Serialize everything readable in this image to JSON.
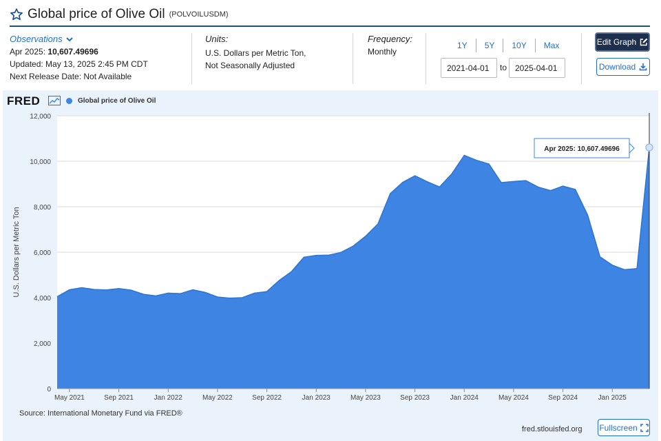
{
  "header": {
    "title": "Global price of Olive Oil",
    "series_id": "(POLVOILUSDM)"
  },
  "observations": {
    "heading": "Observations",
    "latest_label": "Apr 2025:",
    "latest_value": "10,607.49696",
    "updated": "Updated: May 13, 2025 2:45 PM CDT",
    "next_release": "Next Release Date: Not Available"
  },
  "units": {
    "heading": "Units:",
    "line1": "U.S. Dollars per Metric Ton,",
    "line2": "Not Seasonally Adjusted"
  },
  "frequency": {
    "heading": "Frequency:",
    "value": "Monthly"
  },
  "range": {
    "buttons": [
      "1Y",
      "5Y",
      "10Y",
      "Max"
    ],
    "start": "2021-04-01",
    "to_label": "to",
    "end": "2025-04-01"
  },
  "actions": {
    "edit_graph": "Edit Graph",
    "download": "Download",
    "fullscreen": "Fullscreen"
  },
  "chart_panel": {
    "logo": "FRED",
    "source": "Source: International Monetary Fund via FRED®",
    "url": "fred.stlouisfed.org",
    "tooltip": "Apr 2025:  10,607.49696"
  },
  "colors": {
    "accent": "#1f6fd1",
    "series_fill": "#3d84e3",
    "panel_bg": "#eaf2fb",
    "edit_button_bg": "#1e2f4d"
  },
  "chart_data": {
    "type": "area",
    "title": "",
    "series": [
      {
        "name": "Global price of Olive Oil",
        "x": [
          "2021-04",
          "2021-05",
          "2021-06",
          "2021-07",
          "2021-08",
          "2021-09",
          "2021-10",
          "2021-11",
          "2021-12",
          "2022-01",
          "2022-02",
          "2022-03",
          "2022-04",
          "2022-05",
          "2022-06",
          "2022-07",
          "2022-08",
          "2022-09",
          "2022-10",
          "2022-11",
          "2022-12",
          "2023-01",
          "2023-02",
          "2023-03",
          "2023-04",
          "2023-05",
          "2023-06",
          "2023-07",
          "2023-08",
          "2023-09",
          "2023-10",
          "2023-11",
          "2023-12",
          "2024-01",
          "2024-02",
          "2024-03",
          "2024-04",
          "2024-05",
          "2024-06",
          "2024-07",
          "2024-08",
          "2024-09",
          "2024-10",
          "2024-11",
          "2024-12",
          "2025-01",
          "2025-02",
          "2025-03",
          "2025-04"
        ],
        "values": [
          4040,
          4350,
          4440,
          4360,
          4340,
          4400,
          4330,
          4150,
          4080,
          4200,
          4180,
          4350,
          4230,
          4030,
          3980,
          4000,
          4200,
          4270,
          4760,
          5150,
          5780,
          5860,
          5870,
          5990,
          6270,
          6700,
          7240,
          8580,
          9070,
          9360,
          9100,
          8870,
          9450,
          10260,
          10040,
          9880,
          9060,
          9110,
          9150,
          8860,
          8710,
          8910,
          8760,
          7640,
          5800,
          5430,
          5230,
          5280,
          10607.49696
        ]
      }
    ],
    "ylabel": "U.S. Dollars per Metric Ton",
    "xlabel": "",
    "ylim": [
      0,
      12000
    ],
    "y_ticks": [
      "0",
      "2,000",
      "4,000",
      "6,000",
      "8,000",
      "10,000",
      "12,000"
    ],
    "y_tick_values": [
      0,
      2000,
      4000,
      6000,
      8000,
      10000,
      12000
    ],
    "x_tick_labels": [
      "May 2021",
      "Sep 2021",
      "Jan 2022",
      "May 2022",
      "Sep 2022",
      "Jan 2023",
      "May 2023",
      "Sep 2023",
      "Jan 2024",
      "May 2024",
      "Sep 2024",
      "Jan 2025"
    ],
    "x_tick_dates": [
      "2021-05",
      "2021-09",
      "2022-01",
      "2022-05",
      "2022-09",
      "2023-01",
      "2023-05",
      "2023-09",
      "2024-01",
      "2024-05",
      "2024-09",
      "2025-01"
    ],
    "grid": true,
    "legend_position": "top-left"
  }
}
